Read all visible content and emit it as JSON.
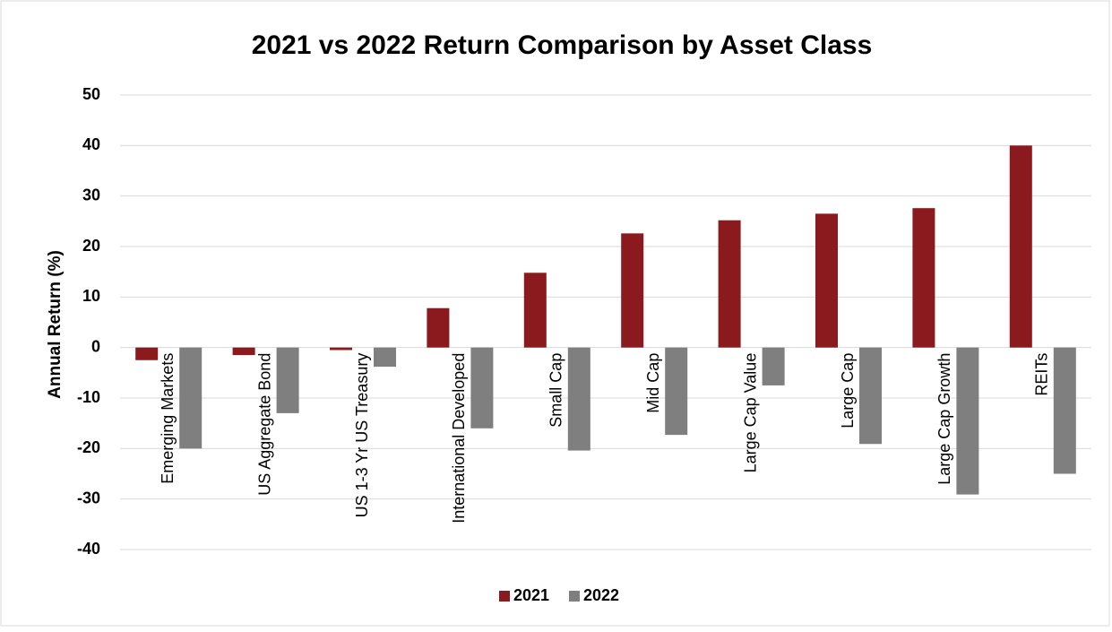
{
  "chart_data": {
    "type": "bar",
    "title": "2021 vs 2022 Return Comparison by Asset Class",
    "y_label": "Annual Return (%)",
    "categories": [
      "Emerging Markets",
      "US Aggregate Bond",
      "US 1-3 Yr US Treasury",
      "International Developed",
      "Small Cap",
      "Mid Cap",
      "Large Cap Value",
      "Large Cap",
      "Large Cap Growth",
      "REITs"
    ],
    "series": [
      {
        "name": "2021",
        "color": "#8b1a1e",
        "values": [
          -2.5,
          -1.5,
          -0.5,
          7.8,
          14.8,
          22.6,
          25.2,
          26.5,
          27.6,
          40
        ]
      },
      {
        "name": "2022",
        "color": "#7f7f7f",
        "values": [
          -20,
          -13,
          -3.8,
          -16,
          -20.4,
          -17.3,
          -7.5,
          -19.1,
          -29.1,
          -25
        ]
      }
    ],
    "ylim": [
      -40,
      50
    ],
    "yticks": [
      -40,
      -30,
      -20,
      -10,
      0,
      10,
      20,
      30,
      40,
      50
    ],
    "grid": true,
    "legend": "bottom"
  }
}
